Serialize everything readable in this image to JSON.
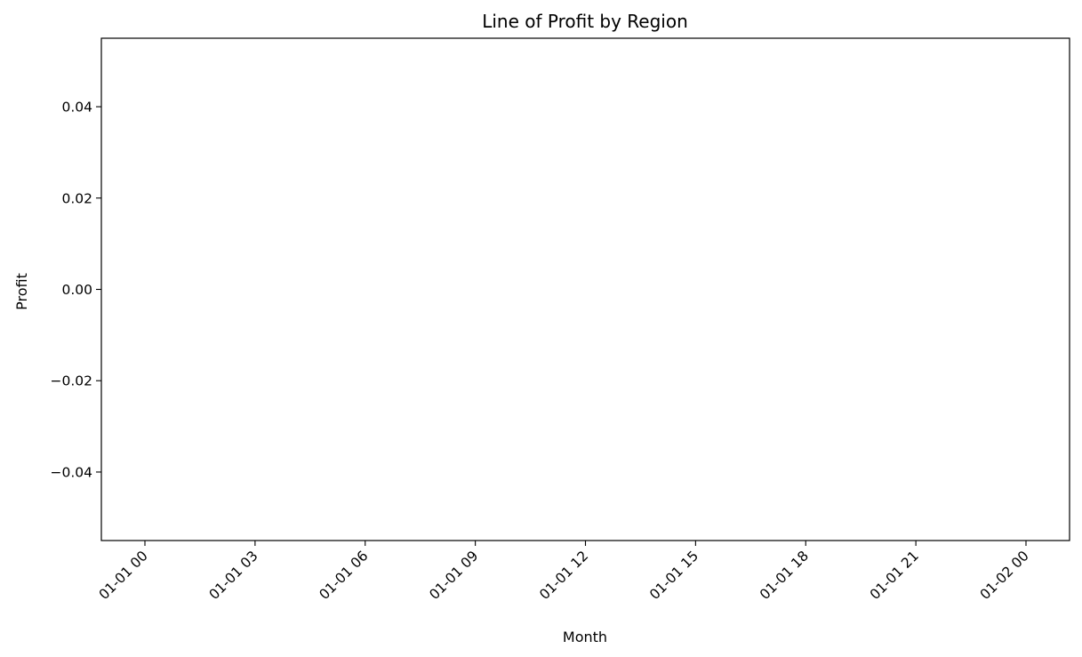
{
  "chart_data": {
    "type": "line",
    "title": "Line of Profit by Region",
    "xlabel": "Month",
    "ylabel": "Profit",
    "x_ticks": [
      "01-01 00",
      "01-01 03",
      "01-01 06",
      "01-01 09",
      "01-01 12",
      "01-01 15",
      "01-01 18",
      "01-01 21",
      "01-02 00"
    ],
    "y_ticks": [
      "0.04",
      "0.02",
      "0.00",
      "−0.02",
      "−0.04"
    ],
    "ylim": [
      -0.055,
      0.055
    ],
    "x_tick_rotation_deg": 45,
    "grid": false,
    "legend": "none",
    "series": []
  }
}
